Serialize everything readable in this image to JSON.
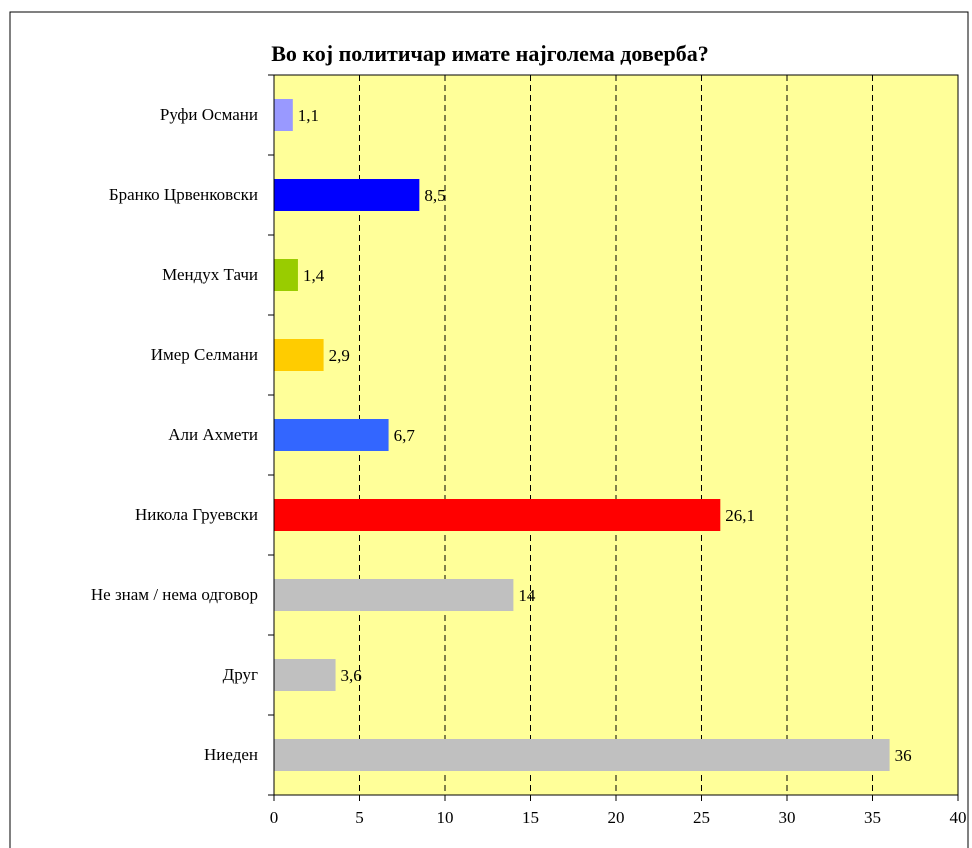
{
  "chart_data": {
    "type": "barh",
    "title": "Во кој политичар имате најголема доверба?",
    "categories": [
      "Руфи Османи",
      "Бранко Црвенковски",
      "Мендух Тачи",
      "Имер Селмани",
      "Али Ахмети",
      "Никола Груевски",
      "Не знам / нема одговор",
      "Друг",
      "Ниеден"
    ],
    "values": [
      1.1,
      8.5,
      1.4,
      2.9,
      6.7,
      26.1,
      14,
      3.6,
      36
    ],
    "value_labels": [
      "1,1",
      "8,5",
      "1,4",
      "2,9",
      "6,7",
      "26,1",
      "14",
      "3,6",
      "36"
    ],
    "colors": [
      "#9999ff",
      "#0000ff",
      "#99cc00",
      "#ffcc00",
      "#3366ff",
      "#ff0000",
      "#c0c0c0",
      "#c0c0c0",
      "#c0c0c0"
    ],
    "xlim": [
      0,
      40
    ],
    "xticks": [
      0,
      5,
      10,
      15,
      20,
      25,
      30,
      35,
      40
    ],
    "grid": true,
    "background": "#ffff99"
  }
}
